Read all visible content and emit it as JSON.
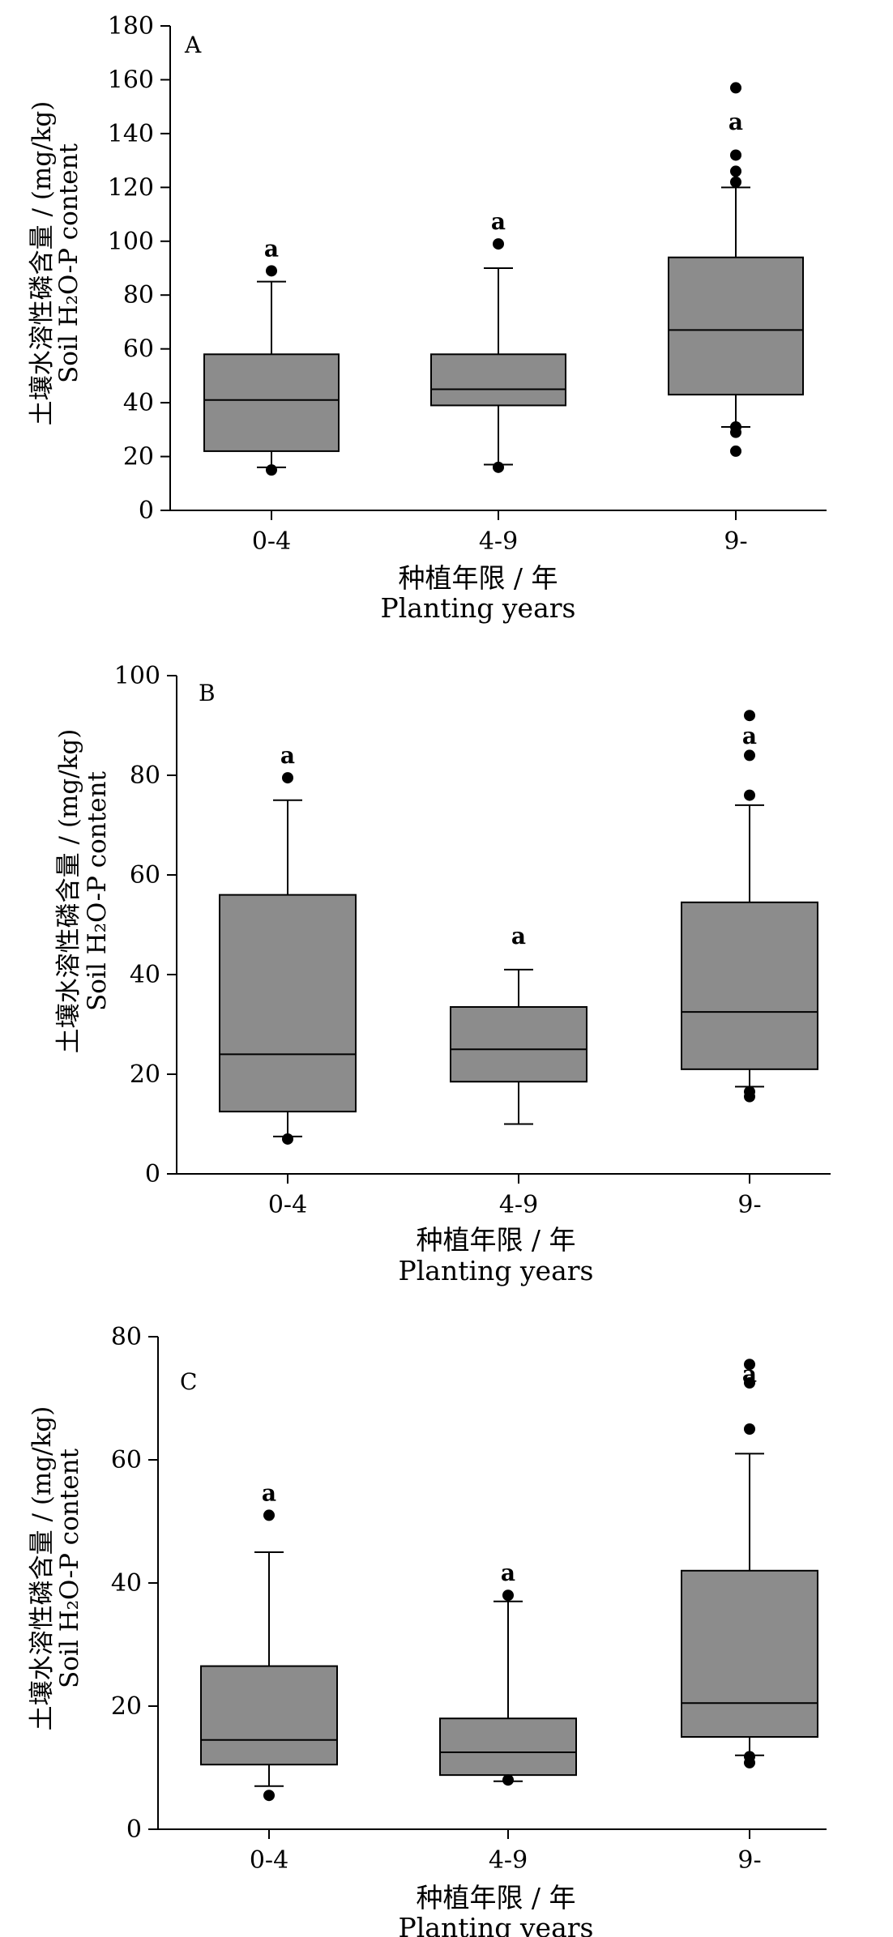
{
  "chart_data": [
    {
      "panel": "A",
      "type": "box",
      "categories": [
        "0-4",
        "4-9",
        "9-"
      ],
      "xlabel": [
        "种植年限 / 年",
        "Planting years"
      ],
      "ylabel": [
        "土壤水溶性磷含量 / (mg/kg)",
        "Soil H₂O-P content"
      ],
      "ylim": [
        0,
        180
      ],
      "yticks": [
        0,
        20,
        40,
        60,
        80,
        100,
        120,
        140,
        160,
        180
      ],
      "boxes": [
        {
          "category": "0-4",
          "whisker_low": 16,
          "q1": 22,
          "median": 41,
          "q3": 58,
          "whisker_high": 85,
          "outliers": [
            15,
            89
          ],
          "label": "a"
        },
        {
          "category": "4-9",
          "whisker_low": 17,
          "q1": 39,
          "median": 45,
          "q3": 58,
          "whisker_high": 90,
          "outliers": [
            16,
            99
          ],
          "label": "a"
        },
        {
          "category": "9-",
          "whisker_low": 31,
          "q1": 43,
          "median": 67,
          "q3": 94,
          "whisker_high": 120,
          "outliers": [
            22,
            29,
            31,
            122,
            126,
            132,
            157
          ],
          "label": "a"
        }
      ]
    },
    {
      "panel": "B",
      "type": "box",
      "categories": [
        "0-4",
        "4-9",
        "9-"
      ],
      "xlabel": [
        "种植年限 / 年",
        "Planting years"
      ],
      "ylabel": [
        "土壤水溶性磷含量 / (mg/kg)",
        "Soil H₂O-P content"
      ],
      "ylim": [
        0,
        100
      ],
      "yticks": [
        0,
        20,
        40,
        60,
        80,
        100
      ],
      "boxes": [
        {
          "category": "0-4",
          "whisker_low": 7.5,
          "q1": 12.5,
          "median": 24,
          "q3": 56,
          "whisker_high": 75,
          "outliers": [
            7,
            79.5
          ],
          "label": "a"
        },
        {
          "category": "4-9",
          "whisker_low": 10,
          "q1": 18.5,
          "median": 25,
          "q3": 33.5,
          "whisker_high": 41,
          "outliers": [],
          "label": "a"
        },
        {
          "category": "9-",
          "whisker_low": 17.5,
          "q1": 21,
          "median": 32.5,
          "q3": 54.5,
          "whisker_high": 74,
          "outliers": [
            15.5,
            16.5,
            76,
            84,
            92
          ],
          "label": "a"
        }
      ]
    },
    {
      "panel": "C",
      "type": "box",
      "categories": [
        "0-4",
        "4-9",
        "9-"
      ],
      "xlabel": [
        "种植年限 / 年",
        "Planting years"
      ],
      "ylabel": [
        "土壤水溶性磷含量 / (mg/kg)",
        "Soil H₂O-P content"
      ],
      "ylim": [
        0,
        80
      ],
      "yticks": [
        0,
        20,
        40,
        60,
        80
      ],
      "boxes": [
        {
          "category": "0-4",
          "whisker_low": 7,
          "q1": 10.5,
          "median": 14.5,
          "q3": 26.5,
          "whisker_high": 45,
          "outliers": [
            5.5,
            51
          ],
          "label": "a"
        },
        {
          "category": "4-9",
          "whisker_low": 7.8,
          "q1": 8.8,
          "median": 12.5,
          "q3": 18,
          "whisker_high": 37,
          "outliers": [
            8,
            38
          ],
          "label": "a"
        },
        {
          "category": "9-",
          "whisker_low": 12,
          "q1": 15,
          "median": 20.5,
          "q3": 42,
          "whisker_high": 61,
          "outliers": [
            10.8,
            11.8,
            65,
            72.5,
            75.5
          ],
          "label": "a"
        }
      ]
    }
  ]
}
